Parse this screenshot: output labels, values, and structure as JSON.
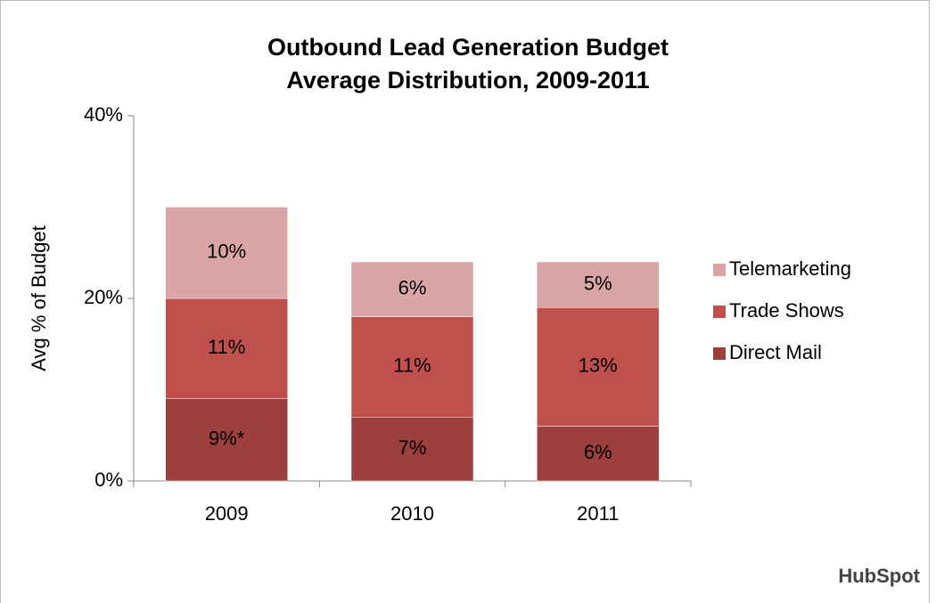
{
  "chart_data": {
    "type": "stacked_bar",
    "title": "Outbound Lead Generation Budget",
    "subtitle": "Average Distribution, 2009-2011",
    "y_label": "Avg % of Budget",
    "categories": [
      "2009",
      "2010",
      "2011"
    ],
    "series": [
      {
        "name": "Direct Mail",
        "color": "#9c3f3d",
        "values": [
          9,
          7,
          6
        ],
        "value_labels": [
          "9%*",
          "7%",
          "6%"
        ]
      },
      {
        "name": "Trade Shows",
        "color": "#c0504d",
        "values": [
          11,
          11,
          13
        ],
        "value_labels": [
          "11%",
          "11%",
          "13%"
        ]
      },
      {
        "name": "Telemarketing",
        "color": "#d9a6a5",
        "values": [
          10,
          6,
          5
        ],
        "value_labels": [
          "10%",
          "6%",
          "5%"
        ]
      }
    ],
    "ylim": [
      0,
      40
    ],
    "yticks": [
      {
        "value": 0,
        "label": "0%"
      },
      {
        "value": 20,
        "label": "20%"
      },
      {
        "value": 40,
        "label": "40%"
      }
    ],
    "grid": false,
    "legend": "right",
    "logo": "HubSpot"
  }
}
